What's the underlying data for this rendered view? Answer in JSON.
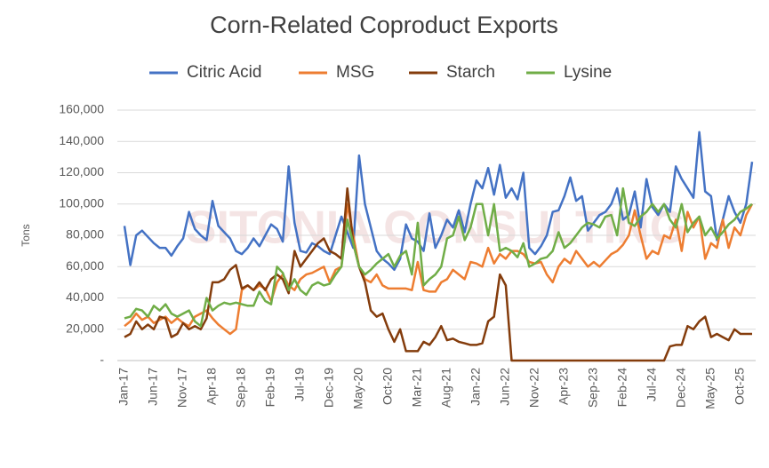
{
  "chart_data": {
    "type": "line",
    "title": "Corn-Related Coproduct Exports",
    "ylabel": "Tons",
    "watermark": "SITONIA CONSULTING",
    "categories": [
      "Jan-17",
      null,
      null,
      null,
      null,
      "Jun-17",
      null,
      null,
      null,
      null,
      "Nov-17",
      null,
      null,
      null,
      null,
      "Apr-18",
      null,
      null,
      null,
      null,
      "Sep-18",
      null,
      null,
      null,
      null,
      "Feb-19",
      null,
      null,
      null,
      null,
      "Jul-19",
      null,
      null,
      null,
      null,
      "Dec-19",
      null,
      null,
      null,
      null,
      "May-20",
      null,
      null,
      null,
      null,
      "Oct-20",
      null,
      null,
      null,
      null,
      "Mar-21",
      null,
      null,
      null,
      null,
      "Aug-21",
      null,
      null,
      null,
      null,
      "Jan-22",
      null,
      null,
      null,
      null,
      "Jun-22",
      null,
      null,
      null,
      null,
      "Nov-22",
      null,
      null,
      null,
      null,
      "Apr-23",
      null,
      null,
      null,
      null,
      "Sep-23",
      null,
      null,
      null,
      null,
      "Feb-24",
      null,
      null,
      null,
      null,
      "Jul-24",
      null,
      null,
      null,
      null,
      "Dec-24",
      null,
      null,
      null,
      null,
      "May-25",
      null,
      null,
      null,
      null,
      "Oct-25",
      null,
      null
    ],
    "series": [
      {
        "name": "Citric Acid",
        "color": "#4472c4",
        "values": [
          86000,
          61000,
          80000,
          83000,
          79000,
          75000,
          72000,
          72000,
          67000,
          73000,
          78000,
          95000,
          84000,
          80000,
          77000,
          102000,
          86000,
          82000,
          78000,
          70000,
          68000,
          72000,
          78000,
          73000,
          80000,
          87000,
          84000,
          76000,
          124000,
          88000,
          70000,
          69000,
          75000,
          73000,
          70000,
          68000,
          80000,
          92000,
          82000,
          72000,
          131000,
          100000,
          85000,
          70000,
          65000,
          62000,
          58000,
          65000,
          87000,
          78000,
          76000,
          70000,
          94000,
          72000,
          80000,
          90000,
          85000,
          96000,
          82000,
          100000,
          115000,
          110000,
          123000,
          106000,
          125000,
          104000,
          110000,
          103000,
          120000,
          72000,
          68000,
          73000,
          80000,
          95000,
          96000,
          105000,
          117000,
          102000,
          105000,
          83000,
          88000,
          93000,
          95000,
          100000,
          110000,
          90000,
          93000,
          108000,
          85000,
          116000,
          98000,
          93000,
          100000,
          95000,
          124000,
          116000,
          110000,
          104000,
          146000,
          108000,
          105000,
          77000,
          90000,
          105000,
          95000,
          88000,
          100000,
          127000
        ]
      },
      {
        "name": "MSG",
        "color": "#ed7d31",
        "values": [
          22000,
          25000,
          30000,
          26000,
          28000,
          24000,
          26000,
          28000,
          24000,
          27000,
          24000,
          22000,
          28000,
          30000,
          32000,
          27000,
          23000,
          20000,
          17000,
          20000,
          45000,
          48000,
          45000,
          48000,
          46000,
          38000,
          50000,
          55000,
          48000,
          45000,
          52000,
          55000,
          56000,
          58000,
          60000,
          50000,
          58000,
          60000,
          100000,
          80000,
          60000,
          52000,
          50000,
          55000,
          48000,
          46000,
          46000,
          46000,
          46000,
          45000,
          63000,
          45000,
          44000,
          44000,
          50000,
          52000,
          58000,
          55000,
          52000,
          63000,
          62000,
          60000,
          72000,
          62000,
          68000,
          65000,
          70000,
          70000,
          68000,
          63000,
          62000,
          63000,
          55000,
          50000,
          60000,
          65000,
          62000,
          70000,
          65000,
          60000,
          63000,
          60000,
          64000,
          68000,
          70000,
          74000,
          80000,
          96000,
          80000,
          65000,
          70000,
          68000,
          80000,
          78000,
          90000,
          70000,
          95000,
          85000,
          92000,
          65000,
          75000,
          72000,
          90000,
          72000,
          85000,
          80000,
          93000,
          100000
        ]
      },
      {
        "name": "Starch",
        "color": "#843c0c",
        "values": [
          15000,
          17000,
          25000,
          20000,
          23000,
          20000,
          28000,
          27000,
          15000,
          17000,
          24000,
          20000,
          22000,
          20000,
          27000,
          50000,
          50000,
          52000,
          58000,
          61000,
          46000,
          48000,
          45000,
          50000,
          45000,
          52000,
          55000,
          52000,
          43000,
          70000,
          60000,
          65000,
          70000,
          75000,
          78000,
          70000,
          68000,
          65000,
          110000,
          75000,
          60000,
          50000,
          32000,
          28000,
          30000,
          20000,
          12000,
          20000,
          6000,
          6000,
          6000,
          12000,
          10000,
          15000,
          22000,
          13000,
          14000,
          12000,
          11000,
          10000,
          10000,
          11000,
          25000,
          28000,
          55000,
          48000,
          0,
          0,
          0,
          0,
          0,
          0,
          0,
          0,
          0,
          0,
          0,
          0,
          0,
          0,
          0,
          0,
          0,
          0,
          0,
          0,
          0,
          0,
          0,
          0,
          0,
          0,
          0,
          9000,
          10000,
          10000,
          22000,
          20000,
          25000,
          28000,
          15000,
          17000,
          15000,
          13000,
          20000,
          17000,
          17000,
          17000
        ]
      },
      {
        "name": "Lysine",
        "color": "#70ad47",
        "values": [
          27000,
          28000,
          33000,
          32000,
          28000,
          35000,
          32000,
          36000,
          30000,
          28000,
          30000,
          32000,
          25000,
          22000,
          40000,
          32000,
          35000,
          37000,
          36000,
          37000,
          36000,
          35000,
          35000,
          44000,
          38000,
          36000,
          60000,
          56000,
          45000,
          52000,
          45000,
          42000,
          48000,
          50000,
          48000,
          49000,
          55000,
          60000,
          90000,
          75000,
          60000,
          55000,
          58000,
          62000,
          65000,
          68000,
          60000,
          67000,
          70000,
          55000,
          88000,
          48000,
          52000,
          55000,
          60000,
          78000,
          80000,
          92000,
          77000,
          85000,
          100000,
          100000,
          80000,
          100000,
          70000,
          72000,
          70000,
          66000,
          75000,
          60000,
          62000,
          65000,
          66000,
          70000,
          82000,
          72000,
          75000,
          80000,
          85000,
          88000,
          87000,
          85000,
          92000,
          93000,
          80000,
          110000,
          88000,
          86000,
          92000,
          95000,
          100000,
          95000,
          100000,
          90000,
          85000,
          100000,
          82000,
          88000,
          92000,
          80000,
          85000,
          78000,
          82000,
          87000,
          90000,
          95000,
          97000,
          100000
        ]
      }
    ],
    "ylim": [
      0,
      160000
    ],
    "yticks": [
      {
        "value": 0,
        "label": "-"
      },
      {
        "value": 20000,
        "label": "20,000"
      },
      {
        "value": 40000,
        "label": "40,000"
      },
      {
        "value": 60000,
        "label": "60,000"
      },
      {
        "value": 80000,
        "label": "80,000"
      },
      {
        "value": 100000,
        "label": "100,000"
      },
      {
        "value": 120000,
        "label": "120,000"
      },
      {
        "value": 140000,
        "label": "140,000"
      },
      {
        "value": 160000,
        "label": "160,000"
      }
    ],
    "grid": true,
    "legend": "top"
  }
}
